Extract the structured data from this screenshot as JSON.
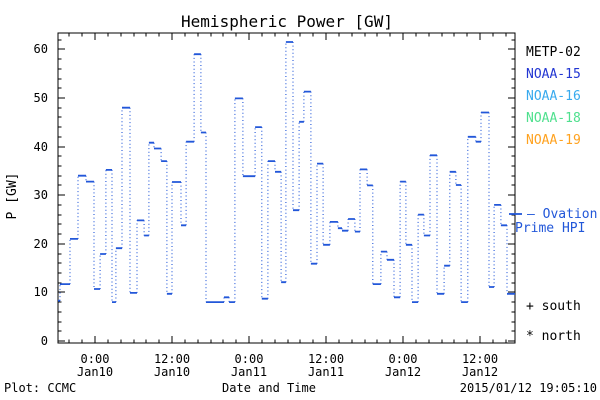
{
  "chart_data": {
    "type": "line",
    "style": "step plot; solid horizontal segments joined by dotted vertical connectors",
    "title": "Hemispheric Power [GW]",
    "ylabel": "P [GW]",
    "xlabel": "Date and Time",
    "ylim": [
      0,
      63
    ],
    "yticks": [
      0,
      10,
      20,
      30,
      40,
      50,
      60
    ],
    "y_minor_step": 2,
    "x_hours_domain": [
      -5.77,
      65.45
    ],
    "x_hours_reference": "hours since Jan10 00:00",
    "x_minor_step_hours": 2,
    "xticks": [
      {
        "h": 0,
        "time": "0:00",
        "date": "Jan10"
      },
      {
        "h": 12,
        "time": "12:00",
        "date": "Jan10"
      },
      {
        "h": 24,
        "time": "0:00",
        "date": "Jan11"
      },
      {
        "h": 36,
        "time": "12:00",
        "date": "Jan11"
      },
      {
        "h": 48,
        "time": "0:00",
        "date": "Jan12"
      },
      {
        "h": 60,
        "time": "12:00",
        "date": "Jan12"
      }
    ],
    "grid": "off",
    "legend_position": "right",
    "series": [
      {
        "name": "Ovation Prime HPI",
        "color": "#2257d9",
        "steps": [
          [
            -5.77,
            -5.45,
            8.3
          ],
          [
            -5.45,
            -3.9,
            11.7
          ],
          [
            -3.9,
            -2.65,
            21
          ],
          [
            -2.65,
            -1.4,
            34
          ],
          [
            -1.4,
            -0.15,
            32.8
          ],
          [
            -0.15,
            0.8,
            10.7
          ],
          [
            0.8,
            1.7,
            17.9
          ],
          [
            1.7,
            2.65,
            35.2
          ],
          [
            2.65,
            3.25,
            8
          ],
          [
            3.25,
            4.2,
            19.1
          ],
          [
            4.2,
            5.45,
            48
          ],
          [
            5.45,
            6.55,
            9.9
          ],
          [
            6.55,
            7.65,
            24.8
          ],
          [
            7.65,
            8.4,
            21.7
          ],
          [
            8.4,
            9.2,
            40.8
          ],
          [
            9.2,
            10.3,
            39.6
          ],
          [
            10.3,
            11.2,
            37
          ],
          [
            11.2,
            12,
            9.7
          ],
          [
            12,
            13.4,
            32.7
          ],
          [
            13.4,
            14.2,
            23.8
          ],
          [
            14.2,
            15.45,
            41
          ],
          [
            15.45,
            16.5,
            59
          ],
          [
            16.5,
            17.3,
            42.9
          ],
          [
            17.3,
            20.1,
            8
          ],
          [
            20.1,
            20.9,
            9
          ],
          [
            20.9,
            21.8,
            8
          ],
          [
            21.8,
            23.05,
            49.9
          ],
          [
            23.05,
            24.95,
            33.9
          ],
          [
            24.95,
            26,
            44
          ],
          [
            26,
            26.95,
            8.7
          ],
          [
            26.95,
            28.05,
            37
          ],
          [
            28.05,
            29,
            34.8
          ],
          [
            29,
            29.75,
            12.1
          ],
          [
            29.75,
            30.85,
            61.5
          ],
          [
            30.85,
            31.8,
            26.9
          ],
          [
            31.8,
            32.55,
            45.1
          ],
          [
            32.55,
            33.65,
            51.3
          ],
          [
            33.65,
            34.6,
            15.9
          ],
          [
            34.6,
            35.55,
            36.5
          ],
          [
            35.55,
            36.6,
            19.8
          ],
          [
            36.6,
            37.85,
            24.5
          ],
          [
            37.85,
            38.5,
            23.2
          ],
          [
            38.5,
            39.45,
            22.7
          ],
          [
            39.45,
            40.5,
            25.1
          ],
          [
            40.5,
            41.3,
            22.5
          ],
          [
            41.3,
            42.4,
            35.3
          ],
          [
            42.4,
            43.3,
            32
          ],
          [
            43.3,
            44.55,
            11.7
          ],
          [
            44.55,
            45.5,
            18.4
          ],
          [
            45.5,
            46.6,
            16.7
          ],
          [
            46.6,
            47.55,
            9
          ],
          [
            47.55,
            48.45,
            32.8
          ],
          [
            48.45,
            49.4,
            19.8
          ],
          [
            49.4,
            50.35,
            8
          ],
          [
            50.35,
            51.25,
            26
          ],
          [
            51.25,
            52.2,
            21.7
          ],
          [
            52.2,
            53.3,
            38.2
          ],
          [
            53.3,
            54.4,
            9.7
          ],
          [
            54.4,
            55.3,
            15.5
          ],
          [
            55.3,
            56.25,
            34.8
          ],
          [
            56.25,
            57.05,
            32.1
          ],
          [
            57.05,
            58.1,
            8
          ],
          [
            58.1,
            59.35,
            42
          ],
          [
            59.35,
            60.15,
            41
          ],
          [
            60.15,
            61.4,
            47
          ],
          [
            61.4,
            62.2,
            11.1
          ],
          [
            62.2,
            63.25,
            28
          ],
          [
            63.25,
            64.2,
            23.8
          ],
          [
            64.2,
            65.45,
            9.7
          ]
        ]
      }
    ]
  },
  "legend": {
    "satellites": [
      {
        "label": "METP-02",
        "color": "#000000"
      },
      {
        "label": "NOAA-15",
        "color": "#2236d2"
      },
      {
        "label": "NOAA-16",
        "color": "#38aaee"
      },
      {
        "label": "NOAA-18",
        "color": "#4fe08e"
      },
      {
        "label": "NOAA-19",
        "color": "#ffa21f"
      }
    ],
    "model": {
      "line1": "— Ovation",
      "line2": "Prime HPI",
      "color": "#2257d9"
    },
    "markers": {
      "south": "+ south",
      "north": "* north"
    }
  },
  "footer": {
    "credit": "Plot: CCMC",
    "timestamp": "2015/01/12 19:05:10"
  }
}
